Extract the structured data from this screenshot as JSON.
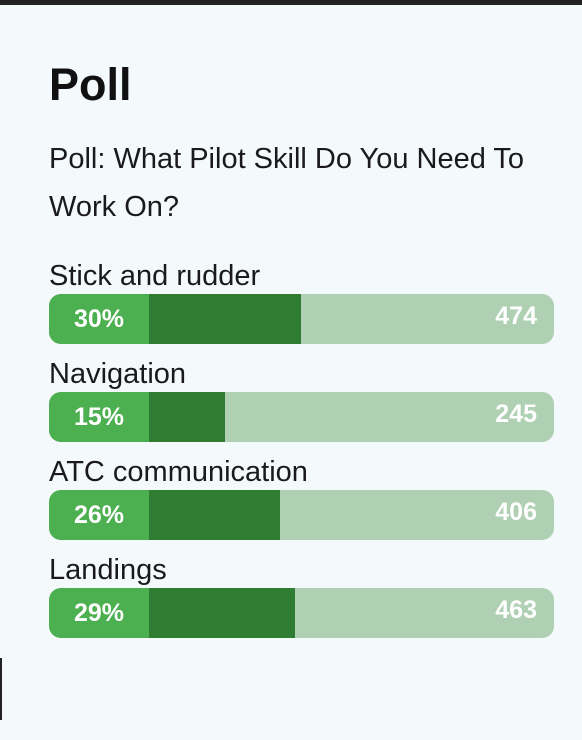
{
  "poll": {
    "heading": "Poll",
    "question": "Poll: What Pilot Skill Do You Need To Work On?",
    "options": [
      {
        "label": "Stick and rudder",
        "percent_label": "30%",
        "percent": 30,
        "count": "474"
      },
      {
        "label": "Navigation",
        "percent_label": "15%",
        "percent": 15,
        "count": "245"
      },
      {
        "label": "ATC communication",
        "percent_label": "26%",
        "percent": 26,
        "count": "406"
      },
      {
        "label": "Landings",
        "percent_label": "29%",
        "percent": 29,
        "count": "463"
      }
    ]
  },
  "colors": {
    "background": "#f4f9fc",
    "bar_track": "#b0d0b3",
    "bar_fill": "#2e7d32",
    "percent_box": "#4caf50"
  }
}
